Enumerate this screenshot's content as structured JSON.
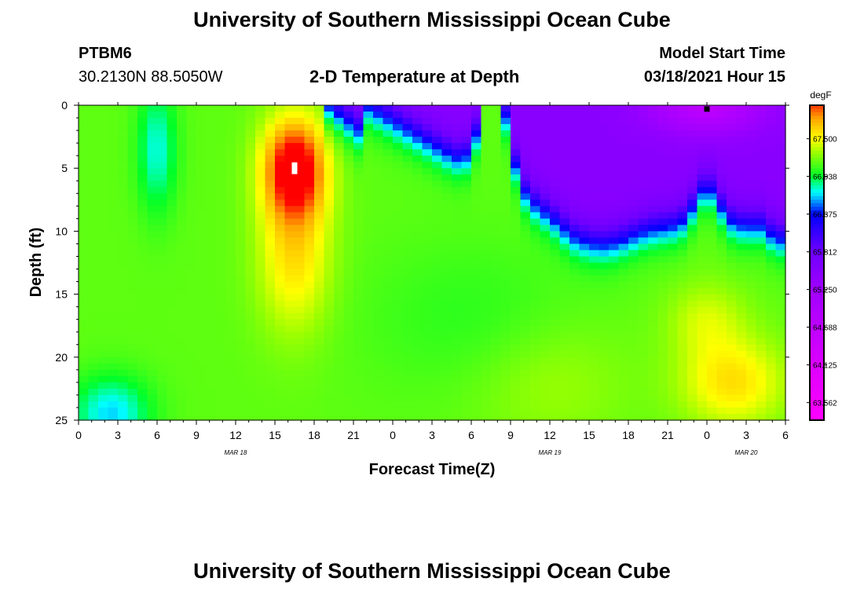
{
  "page": {
    "title_top": "University of Southern Mississippi Ocean Cube",
    "title_bottom": "University of Southern Mississippi Ocean Cube",
    "station_id": "PTBM6",
    "station_coords": "30.2130N 88.5050W",
    "model_start_label": "Model Start Time",
    "model_start_value": "03/18/2021 Hour 15"
  },
  "chart_data": {
    "type": "heatmap",
    "title": "2-D Temperature at Depth",
    "xlabel": "Forecast Time(Z)",
    "ylabel": "Depth (ft)",
    "x_tick_labels": [
      "0",
      "3",
      "6",
      "9",
      "12",
      "15",
      "18",
      "21",
      "0",
      "3",
      "6",
      "9",
      "12",
      "15",
      "18",
      "21",
      "0",
      "3",
      "6"
    ],
    "x_range_hours": [
      0,
      54
    ],
    "date_labels": [
      {
        "hour": 12,
        "text": "MAR 18"
      },
      {
        "hour": 36,
        "text": "MAR 19"
      },
      {
        "hour": 51,
        "text": "MAR 20"
      }
    ],
    "y_ticks": [
      0,
      5,
      10,
      15,
      20,
      25
    ],
    "ylim": [
      0,
      25
    ],
    "colorbar": {
      "unit": "degF",
      "min": 63.3,
      "max": 68.0,
      "tick_values": [
        67.5,
        66.938,
        66.375,
        65.812,
        65.25,
        64.688,
        64.125,
        63.562
      ],
      "tick_labels": [
        "67.500",
        "66.938",
        "66.375",
        "65.812",
        "65.250",
        "64.688",
        "64.125",
        "63.562"
      ]
    },
    "markers": [
      {
        "type": "max",
        "hour": 16.5,
        "depth": 5,
        "color": "#ffffff"
      },
      {
        "type": "min",
        "hour": 48,
        "depth": 0.3,
        "color": "#000000"
      }
    ]
  }
}
